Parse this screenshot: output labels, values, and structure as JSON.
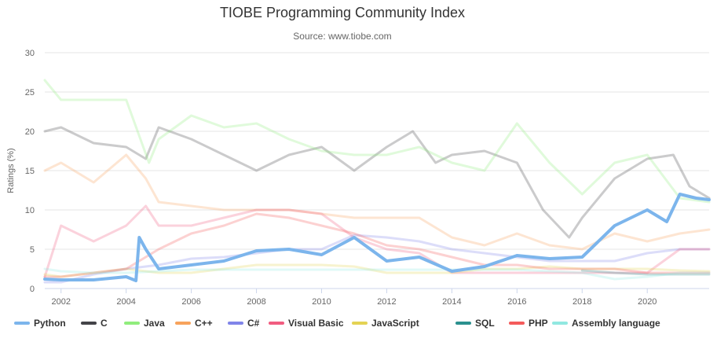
{
  "chart_data": {
    "type": "line",
    "title": "TIOBE Programming Community Index",
    "subtitle": "Source: www.tiobe.com",
    "ylabel": "Ratings (%)",
    "xlabel": "",
    "xlim": [
      2001.5,
      2021.9
    ],
    "ylim": [
      0,
      30
    ],
    "xticks": [
      "2002",
      "2004",
      "2006",
      "2008",
      "2010",
      "2012",
      "2014",
      "2016",
      "2018",
      "2020"
    ],
    "yticks": [
      "0",
      "5",
      "10",
      "15",
      "20",
      "25",
      "30"
    ],
    "grid": true,
    "legend_position": "bottom",
    "series": [
      {
        "name": "Python",
        "color": "#7cb5ec",
        "highlight": true,
        "x": [
          2001.5,
          2002,
          2003,
          2004,
          2004.3,
          2004.4,
          2004.6,
          2005,
          2006,
          2007,
          2008,
          2009,
          2010,
          2011,
          2012,
          2013,
          2014,
          2014.5,
          2015,
          2016,
          2017,
          2018,
          2019,
          2020,
          2020.6,
          2021,
          2021.5,
          2021.9
        ],
        "y": [
          1.2,
          1.1,
          1.1,
          1.5,
          1.0,
          6.5,
          5.0,
          2.5,
          3.0,
          3.5,
          4.8,
          5.0,
          4.3,
          6.5,
          3.5,
          4.0,
          2.2,
          2.5,
          2.8,
          4.2,
          3.8,
          4.0,
          8.0,
          10.0,
          8.5,
          12.0,
          11.5,
          11.3
        ]
      },
      {
        "name": "C",
        "color": "#434348",
        "highlight": false,
        "x": [
          2001.5,
          2002,
          2003,
          2004,
          2004.6,
          2005,
          2006,
          2007,
          2008,
          2009,
          2010,
          2011,
          2012,
          2012.8,
          2013.5,
          2014,
          2015,
          2016,
          2016.8,
          2017.6,
          2018,
          2019,
          2020,
          2020.8,
          2021.3,
          2021.9
        ],
        "y": [
          20,
          20.5,
          18.5,
          18.0,
          16.5,
          20.5,
          19,
          17,
          15,
          17,
          18,
          15,
          18,
          20,
          16,
          17,
          17.5,
          16,
          10,
          6.5,
          9,
          14,
          16.5,
          17,
          13,
          11.5
        ]
      },
      {
        "name": "Java",
        "color": "#90ed7d",
        "highlight": false,
        "x": [
          2001.5,
          2002,
          2003,
          2004,
          2004.7,
          2005,
          2006,
          2007,
          2008,
          2009,
          2010,
          2011,
          2012,
          2013,
          2014,
          2015,
          2016,
          2017,
          2018,
          2019,
          2020,
          2021,
          2021.9
        ],
        "y": [
          26.5,
          24,
          24,
          24,
          16,
          19,
          22,
          20.5,
          21,
          19,
          17.5,
          17,
          17,
          18,
          16,
          15,
          21,
          16,
          12,
          16,
          17,
          11.5,
          11
        ]
      },
      {
        "name": "C++",
        "color": "#f7a35c",
        "highlight": false,
        "x": [
          2001.5,
          2002,
          2003,
          2004,
          2004.6,
          2005,
          2006,
          2007,
          2008,
          2009,
          2010,
          2011,
          2012,
          2013,
          2014,
          2015,
          2016,
          2017,
          2018,
          2019,
          2020,
          2021,
          2021.9
        ],
        "y": [
          15,
          16,
          13.5,
          17,
          14,
          11,
          10.5,
          10,
          10,
          10,
          9.5,
          9,
          9,
          9,
          6.5,
          5.5,
          7,
          5.5,
          5,
          7,
          6,
          7,
          7.5
        ]
      },
      {
        "name": "C#",
        "color": "#8085e9",
        "highlight": false,
        "x": [
          2001.5,
          2002,
          2003,
          2004,
          2005,
          2006,
          2007,
          2008,
          2009,
          2010,
          2011,
          2012,
          2013,
          2014,
          2015,
          2016,
          2017,
          2018,
          2019,
          2020,
          2021,
          2021.9
        ],
        "y": [
          0.8,
          0.8,
          1.8,
          2.5,
          3,
          3.8,
          4,
          4.5,
          5,
          5,
          6.8,
          6.5,
          6,
          5,
          4.5,
          4,
          3.5,
          3.5,
          3.5,
          4.5,
          5,
          5
        ]
      },
      {
        "name": "Visual Basic",
        "color": "#f15c80",
        "highlight": false,
        "x": [
          2001.5,
          2002,
          2003,
          2004,
          2004.6,
          2005,
          2006,
          2007,
          2008,
          2009,
          2010,
          2011,
          2012,
          2013,
          2014,
          2015,
          2016,
          2017,
          2018,
          2019,
          2020,
          2021,
          2021.9
        ],
        "y": [
          1.5,
          8,
          6,
          8,
          10.5,
          8,
          8,
          9,
          10,
          10,
          9.5,
          6.5,
          5,
          4.5,
          2,
          2,
          2,
          2,
          2,
          2,
          2,
          5,
          5
        ]
      },
      {
        "name": "JavaScript",
        "color": "#e4d354",
        "highlight": false,
        "x": [
          2001.5,
          2002,
          2003,
          2004,
          2005,
          2006,
          2007,
          2008,
          2009,
          2010,
          2011,
          2012,
          2013,
          2014,
          2015,
          2016,
          2017,
          2018,
          2019,
          2020,
          2021,
          2021.9
        ],
        "y": [
          1.8,
          1.5,
          2,
          2.5,
          2,
          2,
          2.5,
          3,
          3,
          3,
          2.8,
          2,
          2,
          2,
          2.5,
          2.5,
          2.8,
          2.5,
          2.5,
          2.5,
          2.3,
          2.2
        ]
      },
      {
        "name": "SQL",
        "color": "#2b908f",
        "highlight": false,
        "x": [
          2018,
          2019,
          2020,
          2021,
          2021.9
        ],
        "y": [
          2.3,
          2,
          1.8,
          1.8,
          1.8
        ]
      },
      {
        "name": "PHP",
        "color": "#f45b5b",
        "highlight": false,
        "x": [
          2001.5,
          2002,
          2003,
          2004,
          2005,
          2006,
          2007,
          2008,
          2009,
          2010,
          2011,
          2012,
          2013,
          2014,
          2015,
          2016,
          2017,
          2018,
          2019,
          2020,
          2021,
          2021.9
        ],
        "y": [
          1.5,
          1.5,
          2,
          2.5,
          5,
          7,
          8,
          9.5,
          9,
          8,
          7,
          5.5,
          5,
          4,
          3,
          3,
          2.5,
          2.5,
          2.5,
          2,
          2,
          2
        ]
      },
      {
        "name": "Assembly language",
        "color": "#91e8e1",
        "highlight": false,
        "x": [
          2001.5,
          2002,
          2003,
          2004,
          2005,
          2006,
          2008,
          2010,
          2012,
          2014,
          2016,
          2018,
          2019,
          2020,
          2021,
          2021.9
        ],
        "y": [
          2.5,
          2.2,
          2,
          2,
          2.2,
          2.4,
          2.4,
          2.4,
          2.4,
          2.4,
          2.4,
          2,
          1.2,
          1.5,
          2,
          2
        ]
      }
    ]
  }
}
